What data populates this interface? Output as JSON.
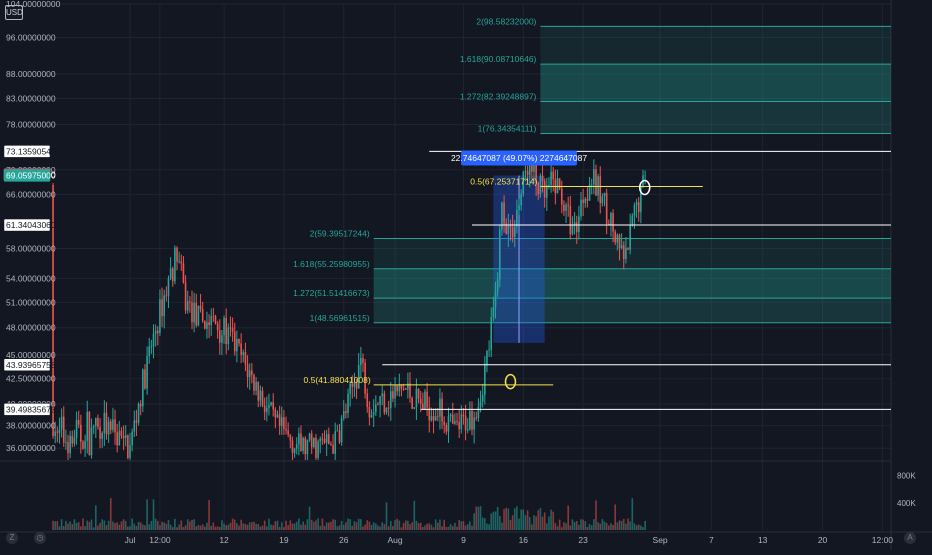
{
  "currency_badge": "USD",
  "colors": {
    "background": "#131722",
    "up": "#26a69a",
    "down": "#ef5350",
    "fib_zone": "#26a69a",
    "fib_label": "#26a69a",
    "level_line": "#ffffff",
    "fib_half": "#f5e34a",
    "measure_box": "#2962ff",
    "measure_label_bg": "#2962ff",
    "axis_text": "#b2b5be",
    "grid": "#1f2430"
  },
  "chart_data": {
    "type": "candlestick",
    "y_axis": {
      "ticks": [
        "104.00000000",
        "96.00000000",
        "88.00000000",
        "83.00000000",
        "78.00000000",
        "70.00000000",
        "66.00000000",
        "58.00000000",
        "54.00000000",
        "51.00000000",
        "48.00000000",
        "45.00000000",
        "42.50000000",
        "40.00000000",
        "38.00000000",
        "36.00000000"
      ],
      "tick_values": [
        104,
        96,
        88,
        83,
        78,
        70,
        66,
        58,
        54,
        51,
        48,
        45,
        42.5,
        40,
        38,
        36
      ]
    },
    "price_tags": [
      {
        "label": "73.13590540",
        "value": 73.1359054,
        "style": "white"
      },
      {
        "label": "69.19400000",
        "value": 69.194,
        "style": "red"
      },
      {
        "label": "69.05975000",
        "value": 69.05975,
        "style": "green"
      },
      {
        "label": "61.34043060",
        "value": 61.3404306,
        "style": "white"
      },
      {
        "label": "43.93965758",
        "value": 43.93965758,
        "style": "white"
      },
      {
        "label": "39.49835673",
        "value": 39.49835673,
        "style": "white"
      }
    ],
    "volume_axis": {
      "ticks": [
        "800K",
        "400K"
      ],
      "tick_values": [
        800,
        400
      ]
    },
    "x_axis": {
      "labels": [
        "Jul",
        "12:00",
        "12",
        "19",
        "26",
        "Aug",
        "9",
        "16",
        "23",
        "Sep",
        "7",
        "13",
        "20",
        "12:00"
      ],
      "label_days": [
        0,
        3.5,
        11,
        18,
        25,
        31,
        39,
        46,
        53,
        62,
        68,
        74,
        81,
        88
      ]
    },
    "fib_upper": {
      "levels": [
        {
          "label": "1(76.34354111)",
          "value": 76.34354111
        },
        {
          "label": "1.272(82.39248897)",
          "value": 82.39248897
        },
        {
          "label": "1.618(90.08710646)",
          "value": 90.08710646
        },
        {
          "label": "2(98.58232000)",
          "value": 98.58232
        }
      ],
      "from_day": 48,
      "to_day": 91
    },
    "fib_lower": {
      "levels": [
        {
          "label": "1(48.56961515)",
          "value": 48.56961515
        },
        {
          "label": "1.272(51.51416673)",
          "value": 51.51416673
        },
        {
          "label": "1.618(55.25980955)",
          "value": 55.25980955
        },
        {
          "label": "2(59.39517244)",
          "value": 59.39517244
        }
      ],
      "from_day": 28.5,
      "to_day": 91
    },
    "fib_half_levels": [
      {
        "label": "0.5(67.25371714)",
        "value": 67.25371714,
        "from_day": 48,
        "to_day": 67
      },
      {
        "label": "0.5(41.88041008)",
        "value": 41.88041008,
        "from_day": 28.5,
        "to_day": 49.5
      }
    ],
    "horizontal_levels": [
      {
        "value": 73.1359054,
        "from_day": 35,
        "to_day": 91
      },
      {
        "value": 61.3404306,
        "from_day": 40,
        "to_day": 91
      },
      {
        "value": 43.93965758,
        "from_day": 29.5,
        "to_day": 91
      },
      {
        "value": 39.49835673,
        "from_day": 34,
        "to_day": 91
      }
    ],
    "measure": {
      "label": "22.74647087 (49.07%) 2274647087",
      "from_day": 42.5,
      "to_day": 48.5,
      "from_value": 46.3,
      "to_value": 69.05
    },
    "markers": [
      {
        "day": 44.5,
        "value": 42.2,
        "color": "#f5e34a"
      },
      {
        "day": 60.2,
        "value": 67.1,
        "color": "#ffffff"
      }
    ],
    "price_anchors": [
      [
        0,
        36
      ],
      [
        2,
        44
      ],
      [
        5.5,
        57.5
      ],
      [
        6.5,
        51
      ],
      [
        8,
        49
      ],
      [
        10,
        48.5
      ],
      [
        12,
        46.5
      ],
      [
        14,
        43
      ],
      [
        17,
        38
      ],
      [
        20,
        36
      ],
      [
        24,
        36.5
      ],
      [
        25.5,
        40
      ],
      [
        27,
        44.5
      ],
      [
        28,
        40
      ],
      [
        30,
        40.5
      ],
      [
        32,
        41.5
      ],
      [
        34,
        40
      ],
      [
        36,
        39.5
      ],
      [
        38,
        37.5
      ],
      [
        40,
        39
      ],
      [
        41,
        41
      ],
      [
        42,
        46
      ],
      [
        42.8,
        52
      ],
      [
        43.5,
        64
      ],
      [
        44.5,
        60
      ],
      [
        45.5,
        64.5
      ],
      [
        46.5,
        71
      ],
      [
        47.5,
        68
      ],
      [
        48.5,
        65.5
      ],
      [
        49.5,
        68
      ],
      [
        50.5,
        66
      ],
      [
        51,
        63
      ],
      [
        52,
        60.5
      ],
      [
        53,
        66
      ],
      [
        54,
        68.5
      ],
      [
        55,
        66
      ],
      [
        56,
        63
      ],
      [
        57,
        58
      ],
      [
        58,
        56.5
      ],
      [
        59,
        63
      ],
      [
        60,
        67.5
      ]
    ],
    "price_range": [
      35,
      104
    ],
    "volume_range": [
      0,
      1000
    ]
  }
}
